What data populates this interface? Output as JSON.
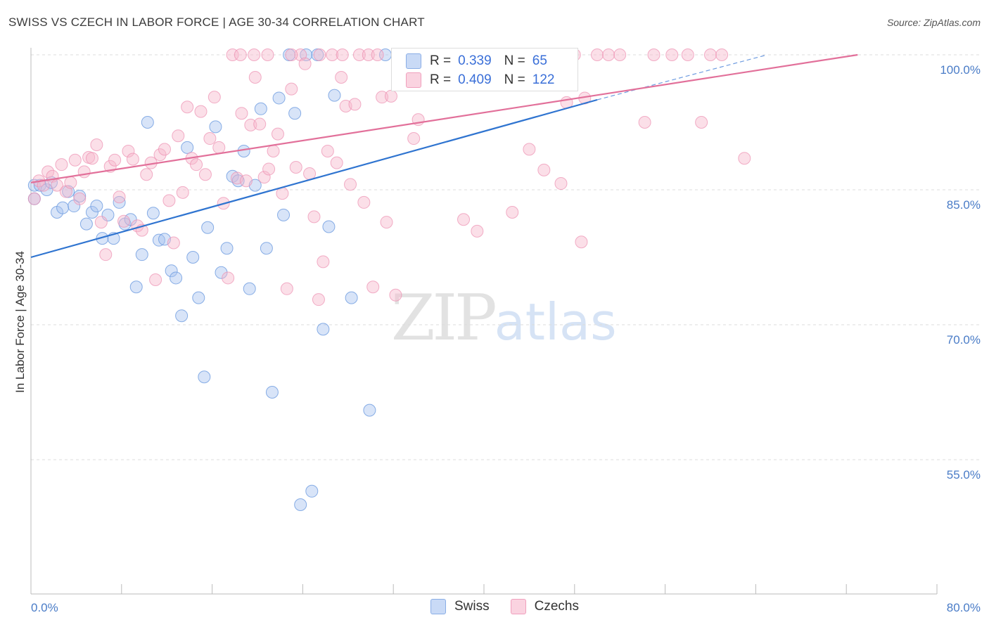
{
  "title": "SWISS VS CZECH IN LABOR FORCE | AGE 30-34 CORRELATION CHART",
  "source": "Source: ZipAtlas.com",
  "watermark_zip": "ZIP",
  "watermark_atlas": "atlas",
  "legend_top": [
    {
      "r_label": "R =",
      "r_value": "0.339",
      "n_label": "N =",
      "n_value": "65",
      "color": "#a8c4f0"
    },
    {
      "r_label": "R =",
      "r_value": "0.409",
      "n_label": "N =",
      "n_value": "122",
      "color": "#f7b8cd"
    }
  ],
  "legend_bottom": [
    {
      "label": "Swiss",
      "color": "#a8c4f0"
    },
    {
      "label": "Czechs",
      "color": "#f7b8cd"
    }
  ],
  "chart_data": {
    "type": "scatter",
    "title": "SWISS VS CZECH IN LABOR FORCE | AGE 30-34 CORRELATION CHART",
    "xlabel": "",
    "ylabel": "In Labor Force | Age 30-34",
    "xlim": [
      0,
      80
    ],
    "ylim": [
      40,
      102.5
    ],
    "x_tick_labels": [
      "0.0%",
      "80.0%"
    ],
    "y_ticks": [
      55,
      70,
      85,
      100
    ],
    "y_tick_labels": [
      "55.0%",
      "70.0%",
      "85.0%",
      "100.0%"
    ],
    "grid": true,
    "legend_position": "top-center",
    "series": [
      {
        "name": "Swiss",
        "color": "#6d9be0",
        "fill": "#a8c4f0",
        "trend": {
          "x": [
            0,
            50
          ],
          "y": [
            77.5,
            95
          ],
          "dashed_extension_to": [
            65,
            100
          ]
        },
        "points": [
          [
            0.3,
            85.5
          ],
          [
            0.8,
            85.5
          ],
          [
            1.4,
            85.0
          ],
          [
            1.8,
            85.8
          ],
          [
            2.3,
            82.5
          ],
          [
            2.8,
            83.0
          ],
          [
            3.3,
            84.8
          ],
          [
            3.8,
            83.2
          ],
          [
            4.3,
            84.3
          ],
          [
            4.9,
            81.2
          ],
          [
            5.4,
            82.5
          ],
          [
            5.8,
            83.2
          ],
          [
            6.3,
            79.6
          ],
          [
            6.8,
            82.2
          ],
          [
            7.3,
            79.6
          ],
          [
            7.8,
            83.6
          ],
          [
            8.3,
            81.2
          ],
          [
            8.8,
            81.7
          ],
          [
            9.3,
            74.2
          ],
          [
            9.8,
            77.8
          ],
          [
            10.3,
            92.5
          ],
          [
            10.8,
            82.4
          ],
          [
            11.3,
            79.4
          ],
          [
            11.8,
            79.5
          ],
          [
            12.4,
            76.0
          ],
          [
            12.8,
            75.2
          ],
          [
            13.3,
            71.0
          ],
          [
            13.8,
            89.7
          ],
          [
            14.3,
            77.5
          ],
          [
            14.8,
            73.0
          ],
          [
            15.3,
            64.2
          ],
          [
            15.6,
            80.8
          ],
          [
            16.3,
            92.0
          ],
          [
            16.8,
            75.8
          ],
          [
            17.3,
            78.5
          ],
          [
            17.8,
            86.5
          ],
          [
            18.3,
            86.0
          ],
          [
            18.8,
            89.3
          ],
          [
            19.3,
            74.0
          ],
          [
            19.8,
            85.5
          ],
          [
            20.3,
            94.0
          ],
          [
            20.8,
            78.5
          ],
          [
            21.3,
            62.5
          ],
          [
            21.9,
            95.2
          ],
          [
            22.3,
            82.2
          ],
          [
            22.8,
            100.0
          ],
          [
            23.3,
            93.5
          ],
          [
            23.8,
            50.0
          ],
          [
            24.3,
            100.0
          ],
          [
            24.8,
            51.5
          ],
          [
            25.3,
            100.0
          ],
          [
            25.8,
            69.5
          ],
          [
            26.3,
            80.9
          ],
          [
            26.8,
            95.5
          ],
          [
            28.3,
            73.0
          ],
          [
            29.9,
            60.5
          ],
          [
            31.3,
            100.0
          ],
          [
            33.8,
            100.0
          ],
          [
            36.0,
            100.0
          ],
          [
            38.3,
            100.0
          ],
          [
            40.8,
            100.0
          ],
          [
            43.3,
            100.0
          ],
          [
            45.8,
            100.0
          ],
          [
            47.0,
            100.0
          ],
          [
            0.3,
            84.0
          ]
        ]
      },
      {
        "name": "Czechs",
        "color": "#ec8fb0",
        "fill": "#f7b8cd",
        "trend": {
          "x": [
            0,
            73
          ],
          "y": [
            85.8,
            100
          ]
        },
        "points": [
          [
            0.3,
            84.0
          ],
          [
            0.7,
            86.0
          ],
          [
            1.1,
            85.5
          ],
          [
            1.5,
            87.0
          ],
          [
            1.9,
            86.5
          ],
          [
            2.3,
            85.5
          ],
          [
            2.7,
            87.8
          ],
          [
            3.1,
            84.8
          ],
          [
            3.5,
            85.8
          ],
          [
            3.9,
            88.3
          ],
          [
            4.3,
            84.0
          ],
          [
            4.7,
            87.0
          ],
          [
            5.1,
            88.6
          ],
          [
            5.4,
            88.5
          ],
          [
            5.8,
            90.0
          ],
          [
            6.2,
            81.4
          ],
          [
            6.6,
            77.8
          ],
          [
            7.0,
            87.6
          ],
          [
            7.4,
            88.3
          ],
          [
            7.8,
            84.2
          ],
          [
            8.2,
            81.5
          ],
          [
            8.6,
            89.3
          ],
          [
            9.0,
            88.4
          ],
          [
            9.4,
            81.0
          ],
          [
            9.8,
            80.5
          ],
          [
            10.2,
            86.7
          ],
          [
            10.6,
            88.0
          ],
          [
            11.0,
            75.0
          ],
          [
            11.4,
            88.9
          ],
          [
            11.8,
            89.5
          ],
          [
            12.2,
            83.8
          ],
          [
            12.6,
            79.1
          ],
          [
            13.0,
            91.0
          ],
          [
            13.4,
            84.7
          ],
          [
            13.8,
            94.2
          ],
          [
            14.2,
            88.5
          ],
          [
            14.6,
            87.8
          ],
          [
            15.0,
            93.7
          ],
          [
            15.4,
            86.7
          ],
          [
            15.8,
            90.7
          ],
          [
            16.2,
            95.3
          ],
          [
            16.6,
            89.7
          ],
          [
            17.0,
            83.5
          ],
          [
            17.4,
            75.2
          ],
          [
            17.8,
            100.0
          ],
          [
            18.2,
            86.3
          ],
          [
            18.6,
            93.5
          ],
          [
            19.0,
            86.0
          ],
          [
            19.4,
            92.2
          ],
          [
            19.8,
            97.5
          ],
          [
            20.2,
            92.3
          ],
          [
            20.6,
            86.4
          ],
          [
            21.0,
            87.3
          ],
          [
            21.4,
            89.3
          ],
          [
            21.8,
            91.2
          ],
          [
            22.2,
            84.6
          ],
          [
            22.6,
            74.0
          ],
          [
            23.0,
            96.2
          ],
          [
            23.4,
            87.5
          ],
          [
            23.8,
            100.0
          ],
          [
            24.2,
            99.0
          ],
          [
            24.6,
            86.8
          ],
          [
            25.0,
            82.0
          ],
          [
            25.4,
            72.8
          ],
          [
            25.8,
            77.0
          ],
          [
            26.2,
            89.3
          ],
          [
            26.6,
            100.0
          ],
          [
            27.0,
            88.0
          ],
          [
            27.4,
            97.5
          ],
          [
            27.8,
            94.3
          ],
          [
            28.2,
            85.6
          ],
          [
            28.6,
            94.5
          ],
          [
            29.0,
            100.0
          ],
          [
            29.4,
            83.6
          ],
          [
            29.8,
            100.0
          ],
          [
            30.2,
            74.2
          ],
          [
            30.6,
            100.0
          ],
          [
            31.0,
            95.3
          ],
          [
            31.4,
            81.4
          ],
          [
            31.8,
            95.4
          ],
          [
            32.2,
            73.3
          ],
          [
            32.6,
            100.0
          ],
          [
            33.0,
            100.0
          ],
          [
            33.4,
            100.0
          ],
          [
            33.8,
            90.7
          ],
          [
            34.2,
            92.8
          ],
          [
            36.0,
            100.0
          ],
          [
            37.0,
            100.0
          ],
          [
            38.2,
            81.7
          ],
          [
            39.4,
            80.4
          ],
          [
            40.0,
            100.0
          ],
          [
            41.0,
            100.0
          ],
          [
            42.5,
            82.5
          ],
          [
            43.0,
            100.0
          ],
          [
            44.0,
            89.5
          ],
          [
            44.7,
            100.0
          ],
          [
            45.3,
            87.2
          ],
          [
            46.0,
            100.0
          ],
          [
            46.8,
            85.7
          ],
          [
            47.3,
            94.7
          ],
          [
            48.0,
            100.0
          ],
          [
            48.6,
            79.2
          ],
          [
            48.9,
            95.2
          ],
          [
            50.0,
            100.0
          ],
          [
            51.0,
            100.0
          ],
          [
            52.0,
            100.0
          ],
          [
            54.2,
            92.5
          ],
          [
            55.0,
            100.0
          ],
          [
            56.6,
            100.0
          ],
          [
            58.0,
            100.0
          ],
          [
            59.2,
            92.5
          ],
          [
            60.0,
            100.0
          ],
          [
            61.0,
            100.0
          ],
          [
            63.0,
            88.5
          ],
          [
            18.5,
            100.0
          ],
          [
            19.7,
            100.0
          ],
          [
            20.9,
            100.0
          ],
          [
            23.0,
            100.0
          ],
          [
            25.5,
            100.0
          ],
          [
            27.5,
            100.0
          ],
          [
            34.6,
            100.0
          ],
          [
            35.2,
            100.0
          ]
        ]
      }
    ]
  }
}
